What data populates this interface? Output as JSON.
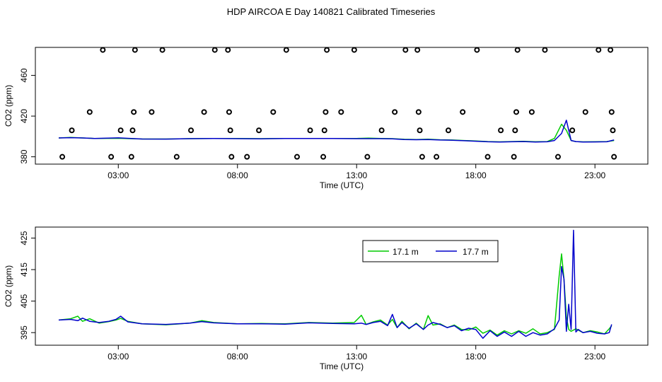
{
  "title": "HDP AIRCOA E  Day 140821  Calibrated Timeseries",
  "chart_data": [
    {
      "type": "scatter",
      "xlabel": "Time (UTC)",
      "ylabel": "CO2 (ppm)",
      "xticks": [
        {
          "value": 3,
          "label": "03:00"
        },
        {
          "value": 8,
          "label": "08:00"
        },
        {
          "value": 13,
          "label": "13:00"
        },
        {
          "value": 18,
          "label": "18:00"
        },
        {
          "value": 23,
          "label": "23:00"
        }
      ],
      "yticks": [
        380,
        420,
        460
      ],
      "xlim": [
        -0.48,
        25.22
      ],
      "ylim": [
        372.8,
        487.5
      ],
      "grid": false,
      "legend": "none",
      "calibration_points": [
        {
          "x": 0.65,
          "y": 380
        },
        {
          "x": 1.05,
          "y": 406
        },
        {
          "x": 1.8,
          "y": 424
        },
        {
          "x": 2.35,
          "y": 485
        },
        {
          "x": 2.7,
          "y": 380
        },
        {
          "x": 3.1,
          "y": 406
        },
        {
          "x": 3.55,
          "y": 380
        },
        {
          "x": 3.6,
          "y": 406
        },
        {
          "x": 3.65,
          "y": 424
        },
        {
          "x": 3.7,
          "y": 485
        },
        {
          "x": 4.4,
          "y": 424
        },
        {
          "x": 4.85,
          "y": 485
        },
        {
          "x": 5.45,
          "y": 380
        },
        {
          "x": 6.05,
          "y": 406
        },
        {
          "x": 6.6,
          "y": 424
        },
        {
          "x": 7.05,
          "y": 485
        },
        {
          "x": 7.6,
          "y": 485
        },
        {
          "x": 7.65,
          "y": 424
        },
        {
          "x": 7.7,
          "y": 406
        },
        {
          "x": 7.75,
          "y": 380
        },
        {
          "x": 8.4,
          "y": 380
        },
        {
          "x": 8.9,
          "y": 406
        },
        {
          "x": 9.5,
          "y": 424
        },
        {
          "x": 10.05,
          "y": 485
        },
        {
          "x": 10.5,
          "y": 380
        },
        {
          "x": 11.05,
          "y": 406
        },
        {
          "x": 11.6,
          "y": 380
        },
        {
          "x": 11.65,
          "y": 406
        },
        {
          "x": 11.7,
          "y": 424
        },
        {
          "x": 11.75,
          "y": 485
        },
        {
          "x": 12.35,
          "y": 424
        },
        {
          "x": 12.9,
          "y": 485
        },
        {
          "x": 13.45,
          "y": 380
        },
        {
          "x": 14.05,
          "y": 406
        },
        {
          "x": 14.6,
          "y": 424
        },
        {
          "x": 15.05,
          "y": 485
        },
        {
          "x": 15.55,
          "y": 485
        },
        {
          "x": 15.6,
          "y": 424
        },
        {
          "x": 15.65,
          "y": 406
        },
        {
          "x": 15.75,
          "y": 380
        },
        {
          "x": 16.35,
          "y": 380
        },
        {
          "x": 16.85,
          "y": 406
        },
        {
          "x": 17.45,
          "y": 424
        },
        {
          "x": 18.05,
          "y": 485
        },
        {
          "x": 18.5,
          "y": 380
        },
        {
          "x": 19.05,
          "y": 406
        },
        {
          "x": 19.6,
          "y": 380
        },
        {
          "x": 19.65,
          "y": 406
        },
        {
          "x": 19.7,
          "y": 424
        },
        {
          "x": 19.75,
          "y": 485
        },
        {
          "x": 20.35,
          "y": 424
        },
        {
          "x": 20.9,
          "y": 485
        },
        {
          "x": 21.45,
          "y": 380
        },
        {
          "x": 22.05,
          "y": 406
        },
        {
          "x": 22.6,
          "y": 424
        },
        {
          "x": 23.15,
          "y": 485
        },
        {
          "x": 23.65,
          "y": 485
        },
        {
          "x": 23.7,
          "y": 424
        },
        {
          "x": 23.75,
          "y": 406
        },
        {
          "x": 23.8,
          "y": 380
        }
      ],
      "series": [
        {
          "name": "17.1 m",
          "color": "#00cc00",
          "x": [
            0.5,
            1,
            1.5,
            2,
            3,
            4,
            5,
            6,
            7,
            8,
            9,
            10,
            11,
            12,
            13,
            13.5,
            14,
            14.5,
            15,
            15.5,
            16,
            16.5,
            17,
            17.5,
            18,
            18.5,
            19,
            19.5,
            20,
            20.5,
            21,
            21.3,
            21.6,
            21.8,
            22.0,
            22.2,
            22.5,
            23,
            23.5,
            23.8
          ],
          "y": [
            398.5,
            399,
            398.5,
            398,
            398.2,
            397.5,
            397.5,
            397.8,
            398,
            398,
            397.8,
            398,
            398,
            398,
            398,
            398.4,
            398,
            397.8,
            397.2,
            397,
            397.3,
            396.7,
            396.5,
            396,
            395.5,
            395,
            394.7,
            395,
            395.2,
            394.8,
            395,
            398,
            412,
            406,
            396,
            395,
            394.7,
            394.8,
            395,
            396
          ]
        },
        {
          "name": "17.7 m",
          "color": "#0000cc",
          "x": [
            0.5,
            1,
            1.5,
            2,
            3,
            4,
            5,
            6,
            7,
            8,
            9,
            10,
            11,
            12,
            13,
            13.5,
            14,
            14.5,
            15,
            15.5,
            16,
            16.5,
            17,
            17.5,
            18,
            18.5,
            19,
            19.5,
            20,
            20.5,
            21,
            21.3,
            21.6,
            21.8,
            22.0,
            22.2,
            22.5,
            23,
            23.5,
            23.8
          ],
          "y": [
            398.5,
            398.8,
            398.5,
            398,
            398.6,
            397.5,
            397.4,
            397.8,
            398,
            397.8,
            397.7,
            398,
            398,
            398,
            397.8,
            397.8,
            397.8,
            397.6,
            397,
            396.8,
            397,
            396.5,
            396.3,
            395.8,
            395.3,
            394.8,
            394.5,
            394.8,
            395,
            394.5,
            394.8,
            396,
            403,
            416,
            396,
            395,
            394.5,
            394.6,
            394.8,
            396.5
          ]
        }
      ]
    },
    {
      "type": "line",
      "xlabel": "Time (UTC)",
      "ylabel": "CO2 (ppm)",
      "xticks": [
        {
          "value": 3,
          "label": "03:00"
        },
        {
          "value": 8,
          "label": "08:00"
        },
        {
          "value": 13,
          "label": "13:00"
        },
        {
          "value": 18,
          "label": "18:00"
        },
        {
          "value": 23,
          "label": "23:00"
        }
      ],
      "yticks": [
        395,
        405,
        415,
        425
      ],
      "xlim": [
        -0.48,
        25.22
      ],
      "ylim": [
        391.0,
        428.5
      ],
      "grid": false,
      "legend": "top-right",
      "series": [
        {
          "name": "17.1 m",
          "color": "#00cc00",
          "x": [
            0.5,
            1.0,
            1.3,
            1.5,
            1.8,
            2.2,
            2.6,
            2.9,
            3.1,
            3.4,
            4.0,
            5.0,
            6.0,
            6.5,
            7.0,
            8.0,
            9.0,
            10.0,
            11.0,
            12.0,
            12.9,
            13.2,
            13.4,
            13.7,
            14.0,
            14.3,
            14.5,
            14.7,
            14.9,
            15.2,
            15.5,
            15.8,
            16.0,
            16.2,
            16.5,
            16.8,
            17.1,
            17.4,
            17.7,
            18.0,
            18.3,
            18.6,
            18.9,
            19.2,
            19.5,
            19.8,
            20.1,
            20.4,
            20.7,
            21.0,
            21.3,
            21.5,
            21.6,
            21.7,
            21.8,
            21.9,
            22.0,
            22.2,
            22.5,
            22.8,
            23.1,
            23.4,
            23.6,
            23.7
          ],
          "y": [
            399,
            399.4,
            400.2,
            398.6,
            399.4,
            398,
            398.5,
            399,
            399.5,
            398.6,
            397.8,
            397.5,
            398,
            398.8,
            398.2,
            397.8,
            397.9,
            397.8,
            398.2,
            398,
            398.2,
            400.5,
            397.6,
            398.4,
            399,
            397.4,
            399.2,
            396.6,
            398.6,
            396.2,
            398,
            396,
            400.4,
            397.4,
            397.8,
            396.6,
            397.4,
            396,
            395.8,
            396.8,
            394.8,
            395.8,
            394.2,
            395.6,
            394.6,
            395.6,
            394.8,
            396.2,
            394.6,
            395,
            396,
            413,
            420,
            412,
            400,
            396,
            395.4,
            396.2,
            395,
            395.6,
            395.2,
            394.6,
            396.2,
            397.2
          ]
        },
        {
          "name": "17.7 m",
          "color": "#0000cc",
          "x": [
            0.5,
            1.0,
            1.3,
            1.5,
            1.8,
            2.2,
            2.6,
            2.9,
            3.1,
            3.4,
            4.0,
            5.0,
            6.0,
            6.5,
            7.0,
            8.0,
            9.0,
            10.0,
            11.0,
            12.0,
            12.9,
            13.2,
            13.4,
            13.7,
            14.0,
            14.3,
            14.5,
            14.7,
            14.9,
            15.2,
            15.5,
            15.8,
            16.0,
            16.2,
            16.5,
            16.8,
            17.1,
            17.4,
            17.7,
            18.0,
            18.3,
            18.6,
            18.9,
            19.2,
            19.5,
            19.8,
            20.1,
            20.4,
            20.7,
            21.0,
            21.3,
            21.5,
            21.6,
            21.7,
            21.8,
            21.9,
            22.0,
            22.1,
            22.2,
            22.3,
            22.5,
            22.8,
            23.1,
            23.4,
            23.6,
            23.7
          ],
          "y": [
            399,
            399.2,
            398.8,
            399.6,
            398.6,
            398.2,
            398.6,
            399.2,
            400.2,
            398.4,
            397.8,
            397.6,
            398,
            398.5,
            398.1,
            397.8,
            397.8,
            397.7,
            398.1,
            397.9,
            397.8,
            398,
            397.6,
            398.2,
            398.6,
            397.2,
            400.8,
            396.6,
            398.2,
            396.4,
            397.8,
            396,
            397.4,
            398.2,
            397.6,
            396.6,
            397.2,
            395.6,
            396.4,
            396,
            393.2,
            395.6,
            393.8,
            395.2,
            393.8,
            395.4,
            393.8,
            395,
            394.2,
            394.6,
            396.2,
            399,
            416,
            412,
            395.4,
            404,
            396,
            427.5,
            395.2,
            396,
            395,
            395.4,
            394.8,
            394.6,
            395,
            397.6
          ]
        }
      ]
    }
  ]
}
